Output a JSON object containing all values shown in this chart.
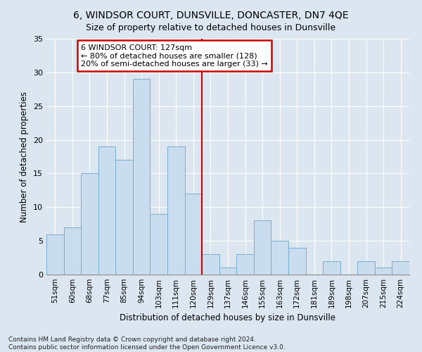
{
  "title": "6, WINDSOR COURT, DUNSVILLE, DONCASTER, DN7 4QE",
  "subtitle": "Size of property relative to detached houses in Dunsville",
  "xlabel": "Distribution of detached houses by size in Dunsville",
  "ylabel": "Number of detached properties",
  "footnote1": "Contains HM Land Registry data © Crown copyright and database right 2024.",
  "footnote2": "Contains public sector information licensed under the Open Government Licence v3.0.",
  "categories": [
    "51sqm",
    "60sqm",
    "68sqm",
    "77sqm",
    "85sqm",
    "94sqm",
    "103sqm",
    "111sqm",
    "120sqm",
    "129sqm",
    "137sqm",
    "146sqm",
    "155sqm",
    "163sqm",
    "172sqm",
    "181sqm",
    "189sqm",
    "198sqm",
    "207sqm",
    "215sqm",
    "224sqm"
  ],
  "values": [
    6,
    7,
    15,
    19,
    17,
    29,
    9,
    19,
    12,
    3,
    1,
    3,
    8,
    5,
    4,
    0,
    2,
    0,
    2,
    1,
    2
  ],
  "bar_color": "#c9ddef",
  "bar_edgecolor": "#7aaecb",
  "property_line_x": 8.5,
  "annotation_text": "6 WINDSOR COURT: 127sqm\n← 80% of detached houses are smaller (128)\n20% of semi-detached houses are larger (33) →",
  "annotation_box_color": "#ffffff",
  "annotation_box_edgecolor": "#cc0000",
  "line_color": "#cc0000",
  "ylim": [
    0,
    35
  ],
  "yticks": [
    0,
    5,
    10,
    15,
    20,
    25,
    30,
    35
  ],
  "background_color": "#dce6f0",
  "plot_background": "#dce6f0",
  "grid_color": "#ffffff",
  "title_fontsize": 10,
  "subtitle_fontsize": 9,
  "axis_label_fontsize": 8.5,
  "tick_fontsize": 8,
  "annotation_fontsize": 8,
  "footnote_fontsize": 6.5
}
